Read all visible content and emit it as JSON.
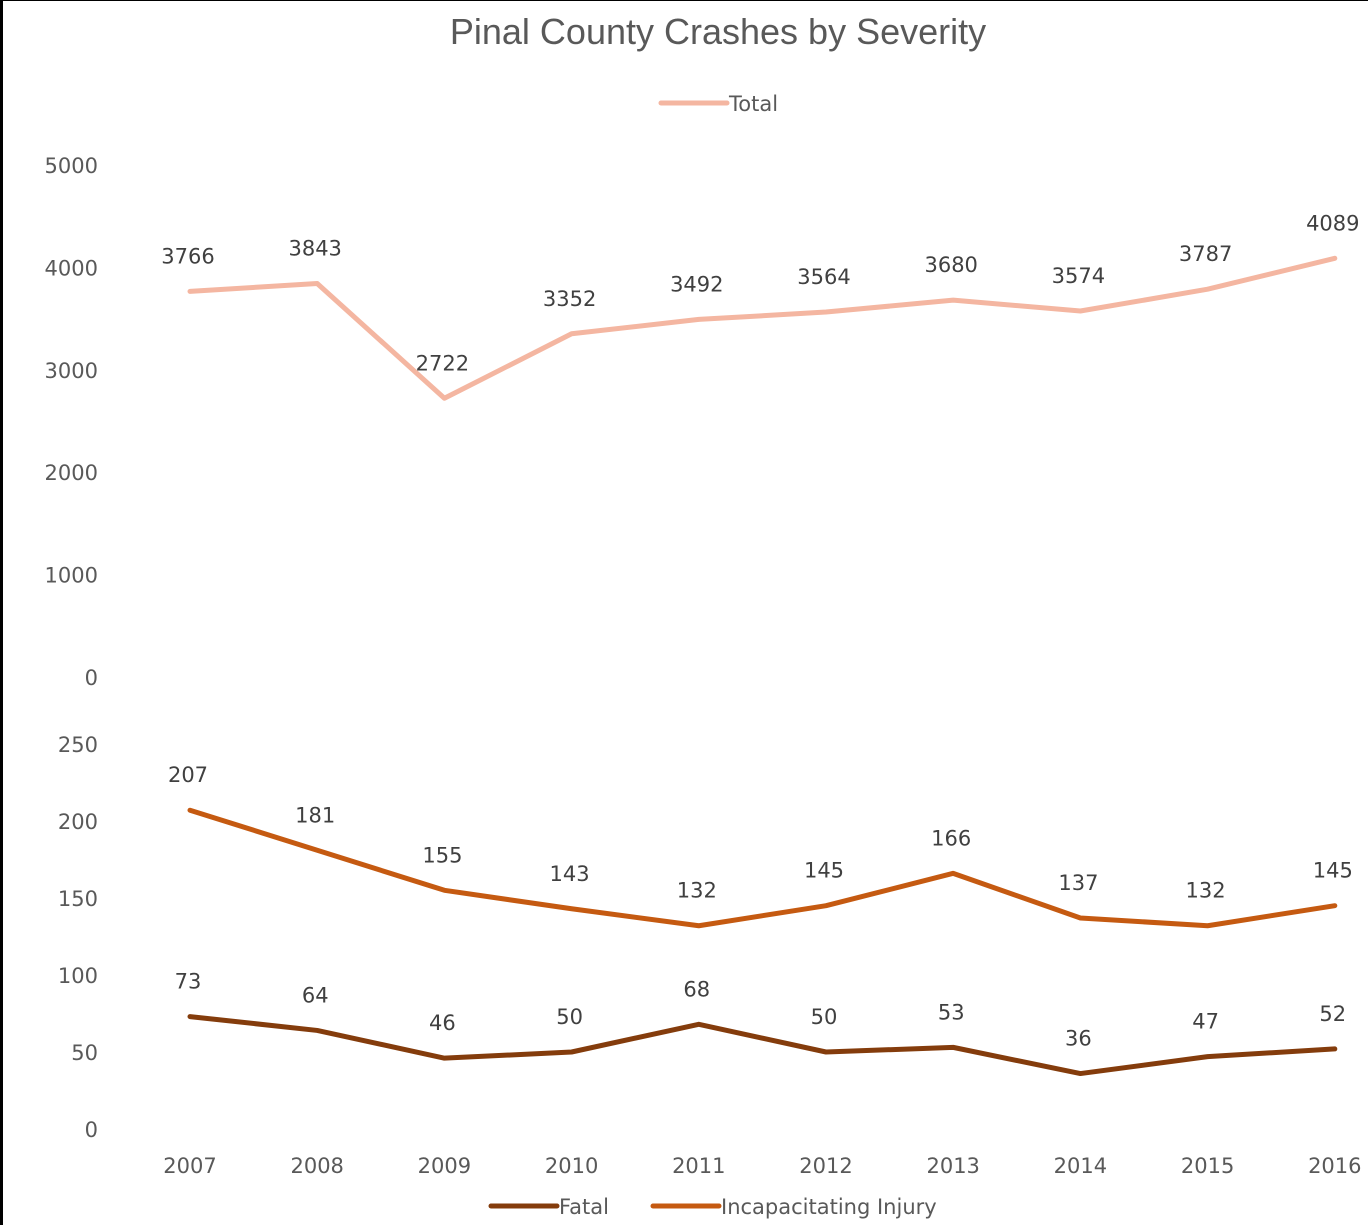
{
  "chart_data": {
    "type": "line",
    "title": "Pinal County Crashes by Severity",
    "categories": [
      "2007",
      "2008",
      "2009",
      "2010",
      "2011",
      "2012",
      "2013",
      "2014",
      "2015",
      "2016"
    ],
    "panels": [
      {
        "ylim": [
          0,
          5000
        ],
        "yticks": [
          "0",
          "1000",
          "2000",
          "3000",
          "4000",
          "5000"
        ],
        "legend_position": "top",
        "series": [
          {
            "name": "Total",
            "color": "#F4B6A1",
            "values": [
              3766,
              3843,
              2722,
              3352,
              3492,
              3564,
              3680,
              3574,
              3787,
              4089
            ]
          }
        ]
      },
      {
        "ylim": [
          0,
          250
        ],
        "yticks": [
          "0",
          "50",
          "100",
          "150",
          "200",
          "250"
        ],
        "legend_position": "bottom",
        "series": [
          {
            "name": "Incapacitating Injury",
            "color": "#C55A11",
            "values": [
              207,
              181,
              155,
              143,
              132,
              145,
              166,
              137,
              132,
              145
            ]
          },
          {
            "name": "Fatal",
            "color": "#843C0C",
            "values": [
              73,
              64,
              46,
              50,
              68,
              50,
              53,
              36,
              47,
              52
            ]
          }
        ]
      }
    ]
  }
}
